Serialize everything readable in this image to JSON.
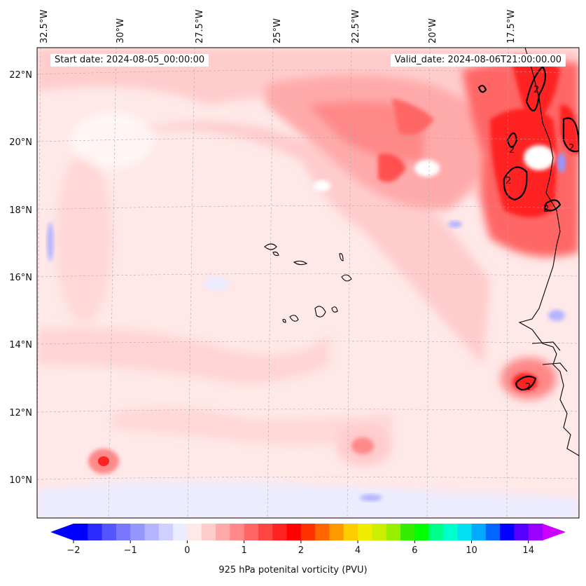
{
  "map": {
    "start_date": "Start date: 2024-08-05_00:00:00",
    "valid_date": "Valid_date: 2024-08-06T21:00:00.00",
    "longitude_labels": [
      "32.5°W",
      "30°W",
      "27.5°W",
      "25°W",
      "22.5°W",
      "20°W",
      "17.5°W"
    ],
    "latitude_labels": [
      "22°N",
      "20°N",
      "18°N",
      "16°N",
      "14°N",
      "12°N",
      "10°N"
    ],
    "contour_label": "2"
  },
  "colorbar": {
    "label": "925 hPa potenital vorticity (PVU)",
    "ticks": [
      "−2",
      "−1",
      "0",
      "1",
      "2",
      "4",
      "6",
      "10",
      "14"
    ],
    "colors": [
      "#0000ff",
      "#2b2bff",
      "#5555ff",
      "#7878ff",
      "#9696ff",
      "#b4b4ff",
      "#d0d0ff",
      "#ececff",
      "#ffe8e8",
      "#ffcccc",
      "#ffaaaa",
      "#ff8888",
      "#ff6666",
      "#ff4444",
      "#ff2222",
      "#ff0000",
      "#ff3300",
      "#ff6600",
      "#ff9900",
      "#ffcc00",
      "#f0ee00",
      "#ccee00",
      "#99ee00",
      "#33ee00",
      "#00ff00",
      "#00ff88",
      "#00ffcc",
      "#00e0f0",
      "#00aaff",
      "#0066ff",
      "#0000ff",
      "#5500ff",
      "#9900ff"
    ],
    "extend_low": "#0000ff",
    "extend_high": "#cc00ff"
  }
}
